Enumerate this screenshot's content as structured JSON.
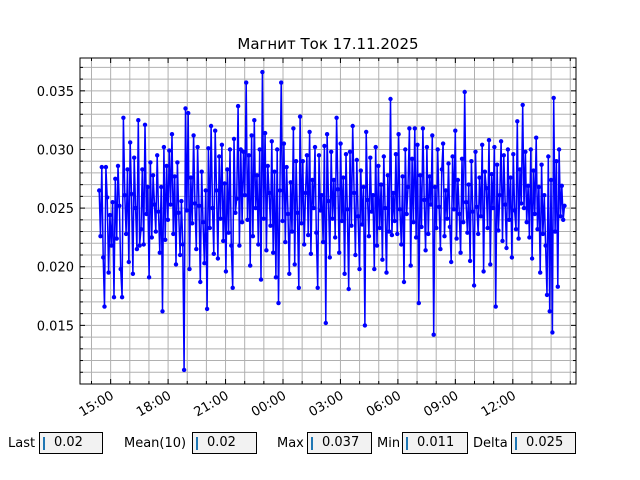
{
  "chart_data": {
    "type": "line",
    "title": "Магнит Ток 17.11.2025",
    "xlabel": "",
    "ylabel": "",
    "x_tick_labels": [
      "15:00",
      "18:00",
      "21:00",
      "00:00",
      "03:00",
      "06:00",
      "09:00",
      "12:00"
    ],
    "y_tick_labels": [
      "0.015",
      "0.020",
      "0.025",
      "0.030",
      "0.035"
    ],
    "y_ticks": [
      0.015,
      0.02,
      0.025,
      0.03,
      0.035
    ],
    "x_ticks_hours": [
      15,
      18,
      21,
      24,
      27,
      30,
      33,
      36
    ],
    "xlim_hours": [
      13.4,
      39.3
    ],
    "ylim": [
      0.01,
      0.0378
    ],
    "grid": true,
    "series_color": "#0000ff",
    "series": [
      {
        "x_start_hour": 14.4,
        "x_end_hour": 38.7,
        "values": [
          0.0265,
          0.0226,
          0.0285,
          0.0208,
          0.0166,
          0.0285,
          0.0259,
          0.0195,
          0.0244,
          0.0218,
          0.0255,
          0.0174,
          0.0275,
          0.0224,
          0.0286,
          0.0252,
          0.0198,
          0.0174,
          0.0327,
          0.0261,
          0.0228,
          0.0283,
          0.0204,
          0.0306,
          0.0262,
          0.0194,
          0.0293,
          0.025,
          0.0215,
          0.0325,
          0.0218,
          0.0232,
          0.0283,
          0.0219,
          0.0321,
          0.0245,
          0.0268,
          0.0191,
          0.0289,
          0.0225,
          0.0278,
          0.0253,
          0.023,
          0.0295,
          0.0247,
          0.0212,
          0.0268,
          0.0162,
          0.0302,
          0.0223,
          0.0286,
          0.024,
          0.0299,
          0.0253,
          0.0313,
          0.0228,
          0.0277,
          0.0202,
          0.0289,
          0.0246,
          0.021,
          0.0256,
          0.0219,
          0.0112,
          0.0335,
          0.0248,
          0.0331,
          0.0198,
          0.0276,
          0.0237,
          0.0312,
          0.0254,
          0.0215,
          0.0302,
          0.0252,
          0.0187,
          0.0281,
          0.0238,
          0.0203,
          0.0265,
          0.0164,
          0.0301,
          0.0233,
          0.032,
          0.025,
          0.0211,
          0.0316,
          0.0265,
          0.0207,
          0.0294,
          0.0241,
          0.0304,
          0.0222,
          0.0271,
          0.0196,
          0.0283,
          0.0229,
          0.03,
          0.0218,
          0.0182,
          0.0309,
          0.0246,
          0.0258,
          0.0337,
          0.0218,
          0.03,
          0.0238,
          0.0298,
          0.0261,
          0.0357,
          0.024,
          0.0295,
          0.0201,
          0.0312,
          0.0226,
          0.0325,
          0.025,
          0.0278,
          0.0219,
          0.03,
          0.0189,
          0.0366,
          0.0241,
          0.0314,
          0.0214,
          0.0286,
          0.0263,
          0.0235,
          0.0307,
          0.0212,
          0.0281,
          0.0191,
          0.03,
          0.0169,
          0.0265,
          0.0357,
          0.0239,
          0.0305,
          0.0221,
          0.0285,
          0.0245,
          0.0194,
          0.0272,
          0.023,
          0.0318,
          0.0202,
          0.029,
          0.0246,
          0.0182,
          0.0328,
          0.0237,
          0.029,
          0.0219,
          0.0263,
          0.0295,
          0.0227,
          0.0315,
          0.0211,
          0.0274,
          0.025,
          0.0302,
          0.0229,
          0.0182,
          0.0295,
          0.0248,
          0.0261,
          0.0221,
          0.0303,
          0.0152,
          0.0313,
          0.0256,
          0.0208,
          0.0298,
          0.0241,
          0.0274,
          0.0225,
          0.0327,
          0.0266,
          0.0212,
          0.0305,
          0.0239,
          0.0276,
          0.0194,
          0.0296,
          0.0249,
          0.0181,
          0.0298,
          0.0235,
          0.032,
          0.0263,
          0.021,
          0.0291,
          0.0243,
          0.0198,
          0.0282,
          0.0236,
          0.0268,
          0.015,
          0.0315,
          0.0257,
          0.0226,
          0.0293,
          0.0247,
          0.0261,
          0.0198,
          0.0302,
          0.0218,
          0.0286,
          0.0233,
          0.027,
          0.0206,
          0.0294,
          0.025,
          0.0195,
          0.0278,
          0.023,
          0.0343,
          0.0227,
          0.0263,
          0.0239,
          0.0296,
          0.0228,
          0.0313,
          0.0249,
          0.0219,
          0.0277,
          0.0187,
          0.03,
          0.0245,
          0.0268,
          0.0318,
          0.0201,
          0.0292,
          0.0238,
          0.0318,
          0.0225,
          0.0304,
          0.0169,
          0.0278,
          0.0234,
          0.0318,
          0.0257,
          0.0214,
          0.0302,
          0.0228,
          0.0277,
          0.0253,
          0.0312,
          0.0142,
          0.0268,
          0.0233,
          0.03,
          0.0251,
          0.0215,
          0.0283,
          0.0305,
          0.0226,
          0.0265,
          0.0241,
          0.0288,
          0.0234,
          0.0204,
          0.0294,
          0.0249,
          0.0316,
          0.0224,
          0.0274,
          0.0245,
          0.0212,
          0.0292,
          0.0238,
          0.0349,
          0.0255,
          0.0229,
          0.027,
          0.0205,
          0.029,
          0.0247,
          0.0184,
          0.0298,
          0.0251,
          0.0228,
          0.0276,
          0.0243,
          0.0304,
          0.0196,
          0.0281,
          0.0267,
          0.0233,
          0.0308,
          0.0202,
          0.0279,
          0.025,
          0.0302,
          0.0166,
          0.0287,
          0.0231,
          0.0261,
          0.0307,
          0.0222,
          0.0295,
          0.0253,
          0.0216,
          0.03,
          0.024,
          0.0276,
          0.0208,
          0.0296,
          0.0248,
          0.0232,
          0.0324,
          0.0224,
          0.0283,
          0.0254,
          0.0338,
          0.025,
          0.0298,
          0.0238,
          0.0269,
          0.0225,
          0.03,
          0.0207,
          0.0282,
          0.0245,
          0.031,
          0.0232,
          0.0268,
          0.0195,
          0.0287,
          0.0228,
          0.0261,
          0.0218,
          0.0176,
          0.0294,
          0.0162,
          0.0274,
          0.0144,
          0.0344,
          0.023,
          0.029,
          0.0183,
          0.03,
          0.0243,
          0.0269,
          0.024,
          0.0252
        ]
      }
    ]
  },
  "stats": [
    {
      "label": "Last",
      "value": "0.02"
    },
    {
      "label": "Mean(10)",
      "value": "0.02"
    },
    {
      "label": "Max",
      "value": "0.037"
    },
    {
      "label": "Min",
      "value": "0.011"
    },
    {
      "label": "Delta",
      "value": "0.025"
    }
  ]
}
